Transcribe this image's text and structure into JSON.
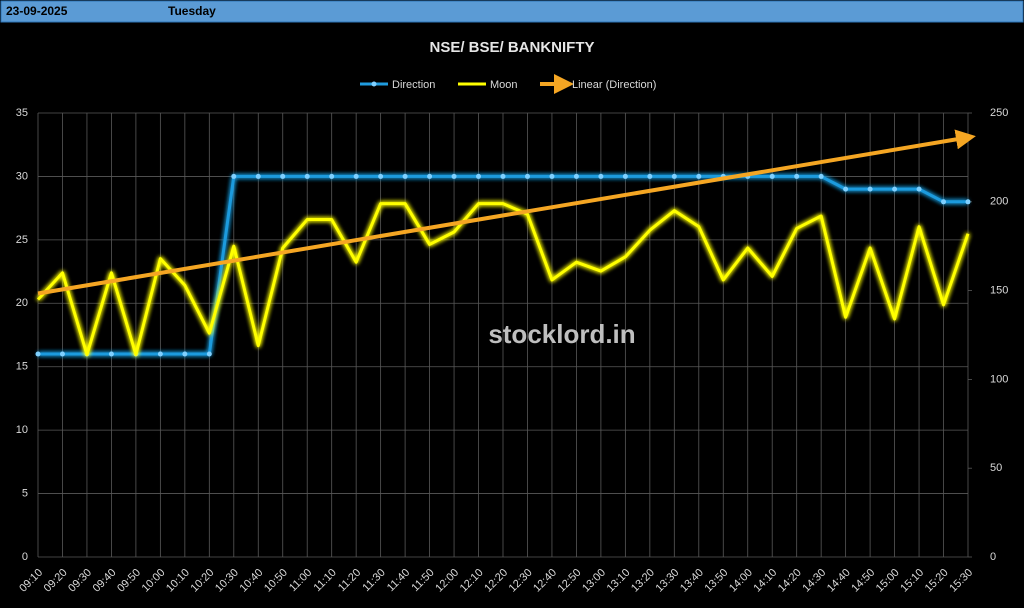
{
  "header": {
    "date": "23-09-2025",
    "day": "Tuesday"
  },
  "watermark": "stocklord.in",
  "chart_data": {
    "type": "line",
    "title": "NSE/ BSE/ BANKNIFTY",
    "categories": [
      "09:10",
      "09:20",
      "09:30",
      "09:40",
      "09:50",
      "10:00",
      "10:10",
      "10:20",
      "10:30",
      "10:40",
      "10:50",
      "11:00",
      "11:10",
      "11:20",
      "11:30",
      "11:40",
      "11:50",
      "12:00",
      "12:10",
      "12:20",
      "12:30",
      "12:40",
      "12:50",
      "13:00",
      "13:10",
      "13:20",
      "13:30",
      "13:40",
      "13:50",
      "14:00",
      "14:10",
      "14:20",
      "14:30",
      "14:40",
      "14:50",
      "15:00",
      "15:10",
      "15:20",
      "15:30"
    ],
    "series": [
      {
        "name": "Direction",
        "color": "#1f9bde",
        "axis": "y",
        "values": [
          16,
          16,
          16,
          16,
          16,
          16,
          16,
          16,
          30,
          30,
          30,
          30,
          30,
          30,
          30,
          30,
          30,
          30,
          30,
          30,
          30,
          30,
          30,
          30,
          30,
          30,
          30,
          30,
          30,
          30,
          30,
          30,
          30,
          29,
          29,
          29,
          29,
          28,
          28
        ]
      },
      {
        "name": "Moon",
        "color": "#ffff00",
        "axis": "y2",
        "values": [
          145,
          160,
          114,
          160,
          114,
          168,
          153,
          126,
          175,
          119,
          174,
          190,
          190,
          166,
          199,
          199,
          176,
          183,
          199,
          199,
          193,
          156,
          166,
          161,
          169,
          184,
          195,
          186,
          156,
          174,
          158,
          185,
          192,
          135,
          174,
          134,
          186,
          142,
          182
        ]
      },
      {
        "name": "Linear (Direction)",
        "color": "#f5a623",
        "trendline_of": 0
      }
    ],
    "ylim": [
      0,
      35
    ],
    "yticks": [
      0,
      5,
      10,
      15,
      20,
      25,
      30,
      35
    ],
    "y2lim": [
      0,
      250
    ],
    "y2ticks": [
      0,
      50,
      100,
      150,
      200,
      250
    ],
    "grid": true
  }
}
